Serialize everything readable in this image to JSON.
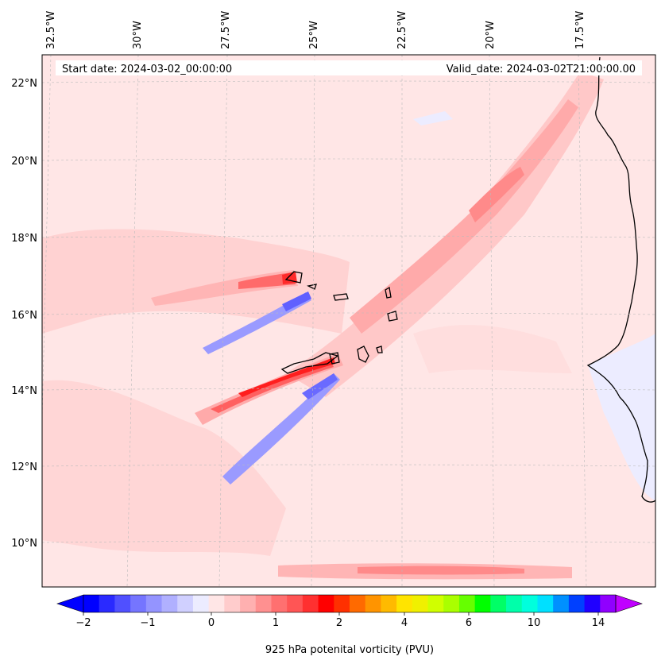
{
  "map": {
    "start_date_label": "Start date: 2024-03-02_00:00:00",
    "valid_date_label": "Valid_date: 2024-03-02T21:00:00.00",
    "lon_labels": [
      "32.5°W",
      "30°W",
      "27.5°W",
      "25°W",
      "22.5°W",
      "20°W",
      "17.5°W"
    ],
    "lat_labels": [
      "22°N",
      "20°N",
      "18°N",
      "16°N",
      "14°N",
      "12°N",
      "10°N"
    ],
    "background_color": "#ffe6e6",
    "gridlines": true
  },
  "colorbar": {
    "label": "925 hPa potenital vorticity (PVU)",
    "tick_labels": [
      "−2",
      "−1",
      "0",
      "1",
      "2",
      "4",
      "6",
      "10",
      "14"
    ],
    "levels": [
      -2,
      -1.75,
      -1.5,
      -1.25,
      -1,
      -0.75,
      -0.5,
      -0.25,
      0,
      0.25,
      0.5,
      0.75,
      1,
      1.25,
      1.5,
      1.75,
      2,
      2.5,
      3,
      3.5,
      4,
      4.5,
      5,
      5.5,
      6,
      7,
      8,
      9,
      10,
      11,
      12,
      13,
      14,
      15
    ],
    "colors": [
      "#0000ff",
      "#2a2aff",
      "#5050ff",
      "#7575ff",
      "#9494ff",
      "#b0b0ff",
      "#d0d0ff",
      "#ececff",
      "#ffe6e6",
      "#ffcccc",
      "#ffb0b0",
      "#ff9090",
      "#ff7070",
      "#ff5555",
      "#ff3030",
      "#ff0000",
      "#ff3000",
      "#ff6a00",
      "#ff9400",
      "#ffba00",
      "#ffe400",
      "#f0f000",
      "#d0ff00",
      "#aaff00",
      "#66ff00",
      "#00ff00",
      "#00ff66",
      "#00ffaa",
      "#00ffdd",
      "#00e0ff",
      "#0090ff",
      "#0040ff",
      "#2000ff",
      "#9000ff"
    ],
    "under_color": "#0000ff",
    "over_color": "#c000ff"
  }
}
